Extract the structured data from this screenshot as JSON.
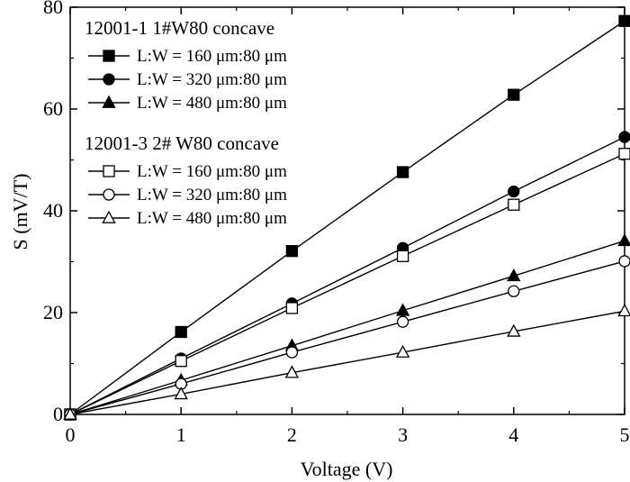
{
  "chart_data": {
    "type": "line",
    "title": "",
    "xlabel": "Voltage (V)",
    "ylabel": "S (mV/T)",
    "xlim": [
      0,
      5
    ],
    "ylim": [
      0,
      80
    ],
    "xticks": [
      "0",
      "1",
      "2",
      "3",
      "4",
      "5"
    ],
    "yticks": [
      "0",
      "20",
      "40",
      "60",
      "80"
    ],
    "grid": false,
    "legend_position": "top-left",
    "x": [
      0,
      1,
      2,
      3,
      4,
      5
    ],
    "groups": [
      {
        "title": "12001-1 1#W80 concave",
        "series_indices": [
          0,
          1,
          2
        ]
      },
      {
        "title": "12001-3 2# W80 concave",
        "series_indices": [
          3,
          4,
          5
        ]
      }
    ],
    "series": [
      {
        "name": "L:W = 160 μm:80 μm",
        "marker": "square",
        "filled": true,
        "values": [
          0,
          16.2,
          32.1,
          47.6,
          62.8,
          77.3
        ]
      },
      {
        "name": "L:W = 320 μm:80 μm",
        "marker": "circle",
        "filled": true,
        "values": [
          0,
          11.0,
          21.8,
          32.7,
          43.8,
          54.5
        ]
      },
      {
        "name": "L:W = 480 μm:80 μm",
        "marker": "triangle",
        "filled": true,
        "values": [
          0,
          6.7,
          13.5,
          20.4,
          27.2,
          34.1
        ]
      },
      {
        "name": "L:W = 160 μm:80 μm",
        "marker": "square",
        "filled": false,
        "values": [
          0,
          10.5,
          20.9,
          31.1,
          41.2,
          51.2
        ]
      },
      {
        "name": "L:W = 320 μm:80 μm",
        "marker": "circle",
        "filled": false,
        "values": [
          0,
          6.0,
          12.2,
          18.2,
          24.2,
          30.1
        ]
      },
      {
        "name": "L:W = 480 μm:80 μm",
        "marker": "triangle",
        "filled": false,
        "values": [
          0,
          4.0,
          8.2,
          12.2,
          16.3,
          20.3
        ]
      }
    ]
  }
}
